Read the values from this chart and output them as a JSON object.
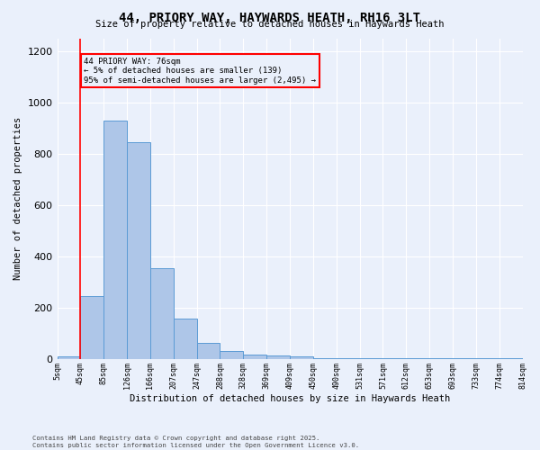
{
  "title": "44, PRIORY WAY, HAYWARDS HEATH, RH16 3LT",
  "subtitle": "Size of property relative to detached houses in Haywards Heath",
  "xlabel": "Distribution of detached houses by size in Haywards Heath",
  "ylabel": "Number of detached properties",
  "footer1": "Contains HM Land Registry data © Crown copyright and database right 2025.",
  "footer2": "Contains public sector information licensed under the Open Government Licence v3.0.",
  "annotation_title": "44 PRIORY WAY: 76sqm",
  "annotation_line2": "← 5% of detached houses are smaller (139)",
  "annotation_line3": "95% of semi-detached houses are larger (2,495) →",
  "bar_values": [
    10,
    247,
    930,
    845,
    355,
    158,
    65,
    32,
    18,
    14,
    10,
    5,
    5,
    5,
    5,
    5,
    5,
    5,
    5,
    5
  ],
  "bin_labels": [
    "5sqm",
    "45sqm",
    "85sqm",
    "126sqm",
    "166sqm",
    "207sqm",
    "247sqm",
    "288sqm",
    "328sqm",
    "369sqm",
    "409sqm",
    "450sqm",
    "490sqm",
    "531sqm",
    "571sqm",
    "612sqm",
    "653sqm",
    "693sqm",
    "733sqm",
    "774sqm",
    "814sqm"
  ],
  "bar_color": "#aec6e8",
  "bar_edge_color": "#5b9bd5",
  "background_color": "#eaf0fb",
  "grid_color": "#ffffff",
  "red_line_x": 1.0,
  "ylim": [
    0,
    1250
  ],
  "yticks": [
    0,
    200,
    400,
    600,
    800,
    1000,
    1200
  ]
}
